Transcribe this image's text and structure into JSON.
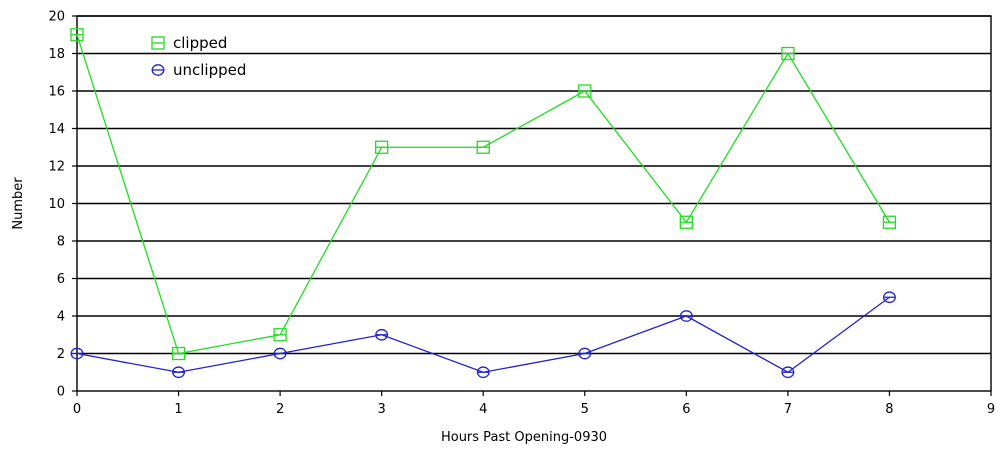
{
  "chart_data": {
    "type": "line",
    "title": "",
    "xlabel": "Hours Past Opening-0930",
    "ylabel": "Number",
    "xlim": [
      0,
      9
    ],
    "ylim": [
      0,
      20
    ],
    "x_ticks": [
      0,
      1,
      2,
      3,
      4,
      5,
      6,
      7,
      8,
      9
    ],
    "y_ticks": [
      0,
      2,
      4,
      6,
      8,
      10,
      12,
      14,
      16,
      18,
      20
    ],
    "grid": "horizontal",
    "legend_position": "top-left",
    "x": [
      0,
      1,
      2,
      3,
      4,
      5,
      6,
      7,
      8
    ],
    "series": [
      {
        "name": "clipped",
        "color": "#22dd22",
        "marker": "square",
        "values": [
          19,
          2,
          3,
          13,
          13,
          16,
          9,
          18,
          9
        ]
      },
      {
        "name": "unclipped",
        "color": "#2222cc",
        "marker": "circle",
        "values": [
          2,
          1,
          2,
          3,
          1,
          2,
          4,
          1,
          5
        ]
      }
    ]
  }
}
